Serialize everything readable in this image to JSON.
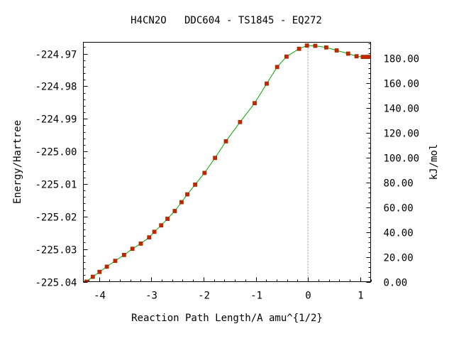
{
  "chart_data": {
    "type": "line",
    "title": "H4CN2O   DDC604 - TS1845 - EQ272",
    "xlabel": "Reaction Path Length/A amu^{1/2}",
    "ylabel": "Energy/Hartree",
    "y2label": "kJ/mol",
    "xlim": [
      -4.3,
      1.2
    ],
    "ylim": [
      -225.04,
      -224.9665
    ],
    "y2lim": [
      0,
      193.0
    ],
    "x_ticks": [
      "-4",
      "-3",
      "-2",
      "-1",
      "0",
      "1"
    ],
    "y_ticks": [
      "-224.97",
      "-224.98",
      "-224.99",
      "-225.00",
      "-225.01",
      "-225.02",
      "-225.03",
      "-225.04"
    ],
    "y2_ticks": [
      "180.00",
      "160.00",
      "140.00",
      "120.00",
      "100.00",
      "80.00",
      "60.00",
      "40.00",
      "20.00",
      "0.00"
    ],
    "ts_x": 0,
    "grid": false,
    "line_color": "#00aa00",
    "marker_color": "#cc2200",
    "marker_edge_color": "#993300",
    "series": [
      {
        "x": [
          -4.24,
          -4.12,
          -3.99,
          -3.85,
          -3.69,
          -3.52,
          -3.36,
          -3.2,
          -3.04,
          -2.94,
          -2.81,
          -2.69,
          -2.55,
          -2.42,
          -2.31,
          -2.16,
          -1.98,
          -1.78,
          -1.57,
          -1.3,
          -1.02,
          -0.79,
          -0.59,
          -0.41,
          -0.17,
          -0.02,
          0.14,
          0.35,
          0.55,
          0.77,
          0.93,
          1.05,
          1.13,
          1.18
        ],
        "y": [
          -225.04,
          -225.0385,
          -225.037,
          -225.0354,
          -225.0336,
          -225.0318,
          -225.0299,
          -225.0283,
          -225.0264,
          -225.0247,
          -225.0227,
          -225.0207,
          -225.0183,
          -225.0156,
          -225.0132,
          -225.0102,
          -225.0066,
          -225.002,
          -224.9969,
          -224.991,
          -224.9852,
          -224.9792,
          -224.9741,
          -224.9709,
          -224.9685,
          -224.9675,
          -224.9676,
          -224.9681,
          -224.969,
          -224.97,
          -224.9708,
          -224.971,
          -224.971,
          -224.971
        ]
      }
    ]
  }
}
